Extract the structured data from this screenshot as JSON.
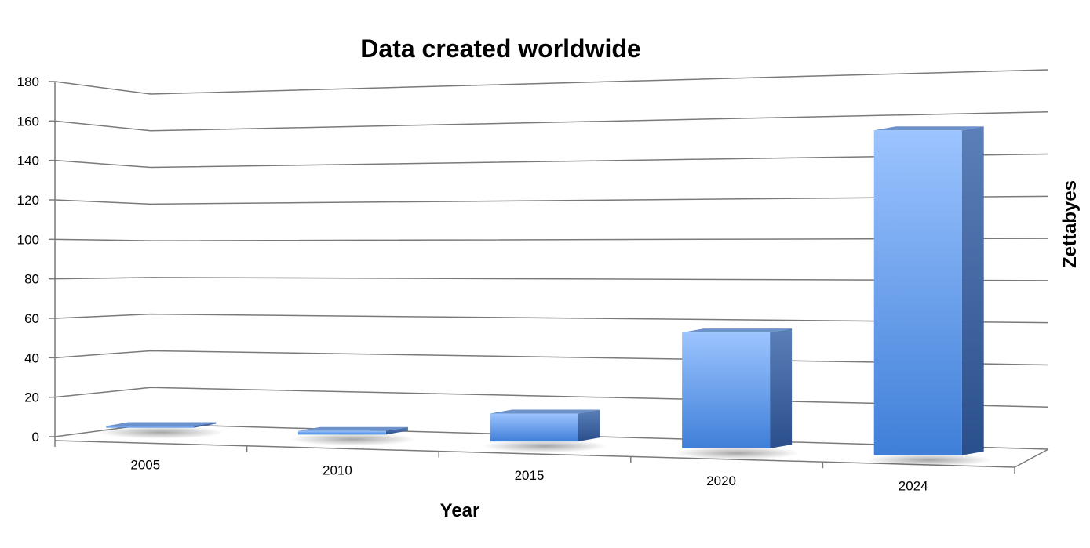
{
  "chart_data": {
    "type": "bar",
    "title": "Data created worldwide",
    "xlabel": "Year",
    "ylabel": "Zettabyes",
    "categories": [
      "2005",
      "2010",
      "2015",
      "2020",
      "2024"
    ],
    "values": [
      0.1,
      2,
      15.5,
      64.2,
      180
    ],
    "ylim": [
      0,
      180
    ],
    "yticks": [
      0,
      20,
      40,
      60,
      80,
      100,
      120,
      140,
      160,
      180
    ],
    "grid": true,
    "legend": "none",
    "colors": {
      "bar_front_top": "#9cc4ff",
      "bar_front_bottom": "#3f7fd8",
      "bar_side": "#2f5da3",
      "bar_top": "#6d92c9",
      "grid": "#7a7a7a"
    }
  }
}
